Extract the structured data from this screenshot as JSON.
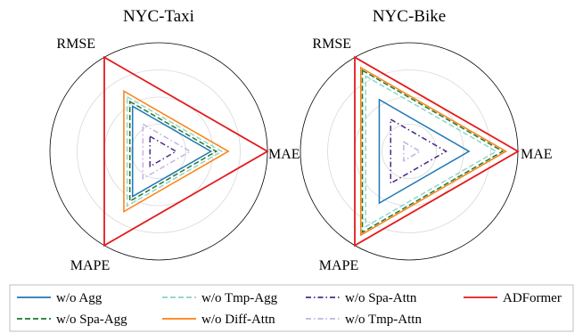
{
  "chart_data": [
    {
      "type": "radar",
      "title": "NYC-Taxi",
      "axes": [
        "RMSE",
        "MAE",
        "MAPE"
      ],
      "range": [
        0,
        1
      ],
      "grid": true,
      "series": [
        {
          "name": "w/o Agg",
          "values": [
            0.48,
            0.48,
            0.48
          ]
        },
        {
          "name": "w/o Tmp-Agg",
          "values": [
            0.58,
            0.58,
            0.58
          ]
        },
        {
          "name": "w/o Spa-Attn",
          "values": [
            0.16,
            0.16,
            0.16
          ]
        },
        {
          "name": "ADFormer",
          "values": [
            1.0,
            1.0,
            1.0
          ]
        },
        {
          "name": "w/o Spa-Agg",
          "values": [
            0.53,
            0.53,
            0.53
          ]
        },
        {
          "name": "w/o Diff-Attn",
          "values": [
            0.64,
            0.64,
            0.64
          ]
        },
        {
          "name": "w/o Tmp-Attn",
          "values": [
            0.29,
            0.29,
            0.29
          ]
        }
      ]
    },
    {
      "type": "radar",
      "title": "NYC-Bike",
      "axes": [
        "RMSE",
        "MAE",
        "MAPE"
      ],
      "range": [
        0,
        1
      ],
      "grid": true,
      "series": [
        {
          "name": "w/o Agg",
          "values": [
            0.55,
            0.55,
            0.55
          ]
        },
        {
          "name": "w/o Tmp-Agg",
          "values": [
            0.8,
            0.8,
            0.8
          ]
        },
        {
          "name": "w/o Spa-Attn",
          "values": [
            0.34,
            0.34,
            0.34
          ]
        },
        {
          "name": "ADFormer",
          "values": [
            1.0,
            1.0,
            1.0
          ]
        },
        {
          "name": "w/o Spa-Agg",
          "values": [
            0.86,
            0.86,
            0.86
          ]
        },
        {
          "name": "w/o Diff-Attn",
          "values": [
            0.89,
            0.89,
            0.89
          ]
        },
        {
          "name": "w/o Tmp-Attn",
          "values": [
            0.1,
            0.1,
            0.1
          ]
        }
      ]
    }
  ],
  "legend": {
    "placement": "bottom",
    "entries": [
      {
        "label": "w/o Agg",
        "color": "#1f77b4",
        "dash": "solid"
      },
      {
        "label": "w/o Tmp-Agg",
        "color": "#8fd3c8",
        "dash": "dashed"
      },
      {
        "label": "w/o Spa-Attn",
        "color": "#4b2b86",
        "dash": "dashdot"
      },
      {
        "label": "ADFormer",
        "color": "#e31a1c",
        "dash": "solid"
      },
      {
        "label": "w/o Spa-Agg",
        "color": "#1a7a2e",
        "dash": "dashed"
      },
      {
        "label": "w/o Diff-Attn",
        "color": "#ff7f0e",
        "dash": "solid"
      },
      {
        "label": "w/o Tmp-Attn",
        "color": "#bdb4e0",
        "dash": "dashdot"
      }
    ]
  }
}
